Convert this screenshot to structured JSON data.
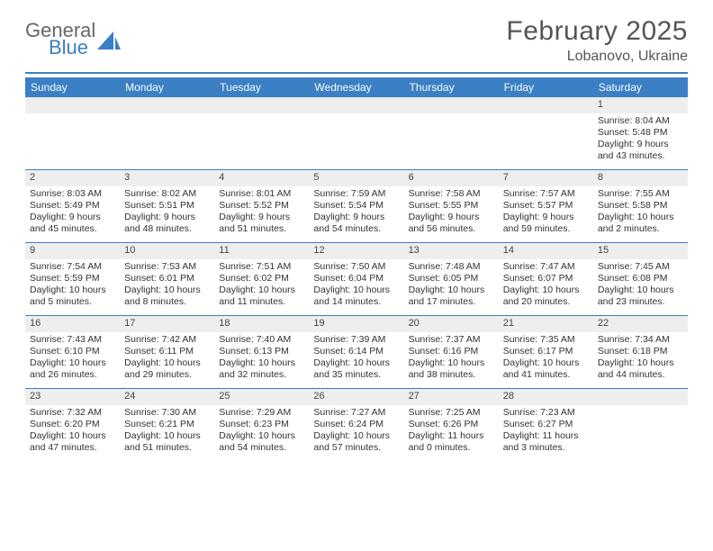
{
  "logo": {
    "text_top": "General",
    "text_bottom": "Blue"
  },
  "title": "February 2025",
  "location": "Lobanovo, Ukraine",
  "colors": {
    "accent": "#3b7fc4",
    "header_text": "#555555",
    "body_text": "#333333",
    "stripe": "#eeeeee",
    "background": "#ffffff"
  },
  "typography": {
    "title_fontsize": 30,
    "location_fontsize": 16,
    "day_header_fontsize": 12,
    "cell_fontsize": 10.5
  },
  "day_headers": [
    "Sunday",
    "Monday",
    "Tuesday",
    "Wednesday",
    "Thursday",
    "Friday",
    "Saturday"
  ],
  "weeks": [
    [
      {
        "day": ""
      },
      {
        "day": ""
      },
      {
        "day": ""
      },
      {
        "day": ""
      },
      {
        "day": ""
      },
      {
        "day": ""
      },
      {
        "day": "1",
        "sunrise": "Sunrise: 8:04 AM",
        "sunset": "Sunset: 5:48 PM",
        "daylight": "Daylight: 9 hours and 43 minutes."
      }
    ],
    [
      {
        "day": "2",
        "sunrise": "Sunrise: 8:03 AM",
        "sunset": "Sunset: 5:49 PM",
        "daylight": "Daylight: 9 hours and 45 minutes."
      },
      {
        "day": "3",
        "sunrise": "Sunrise: 8:02 AM",
        "sunset": "Sunset: 5:51 PM",
        "daylight": "Daylight: 9 hours and 48 minutes."
      },
      {
        "day": "4",
        "sunrise": "Sunrise: 8:01 AM",
        "sunset": "Sunset: 5:52 PM",
        "daylight": "Daylight: 9 hours and 51 minutes."
      },
      {
        "day": "5",
        "sunrise": "Sunrise: 7:59 AM",
        "sunset": "Sunset: 5:54 PM",
        "daylight": "Daylight: 9 hours and 54 minutes."
      },
      {
        "day": "6",
        "sunrise": "Sunrise: 7:58 AM",
        "sunset": "Sunset: 5:55 PM",
        "daylight": "Daylight: 9 hours and 56 minutes."
      },
      {
        "day": "7",
        "sunrise": "Sunrise: 7:57 AM",
        "sunset": "Sunset: 5:57 PM",
        "daylight": "Daylight: 9 hours and 59 minutes."
      },
      {
        "day": "8",
        "sunrise": "Sunrise: 7:55 AM",
        "sunset": "Sunset: 5:58 PM",
        "daylight": "Daylight: 10 hours and 2 minutes."
      }
    ],
    [
      {
        "day": "9",
        "sunrise": "Sunrise: 7:54 AM",
        "sunset": "Sunset: 5:59 PM",
        "daylight": "Daylight: 10 hours and 5 minutes."
      },
      {
        "day": "10",
        "sunrise": "Sunrise: 7:53 AM",
        "sunset": "Sunset: 6:01 PM",
        "daylight": "Daylight: 10 hours and 8 minutes."
      },
      {
        "day": "11",
        "sunrise": "Sunrise: 7:51 AM",
        "sunset": "Sunset: 6:02 PM",
        "daylight": "Daylight: 10 hours and 11 minutes."
      },
      {
        "day": "12",
        "sunrise": "Sunrise: 7:50 AM",
        "sunset": "Sunset: 6:04 PM",
        "daylight": "Daylight: 10 hours and 14 minutes."
      },
      {
        "day": "13",
        "sunrise": "Sunrise: 7:48 AM",
        "sunset": "Sunset: 6:05 PM",
        "daylight": "Daylight: 10 hours and 17 minutes."
      },
      {
        "day": "14",
        "sunrise": "Sunrise: 7:47 AM",
        "sunset": "Sunset: 6:07 PM",
        "daylight": "Daylight: 10 hours and 20 minutes."
      },
      {
        "day": "15",
        "sunrise": "Sunrise: 7:45 AM",
        "sunset": "Sunset: 6:08 PM",
        "daylight": "Daylight: 10 hours and 23 minutes."
      }
    ],
    [
      {
        "day": "16",
        "sunrise": "Sunrise: 7:43 AM",
        "sunset": "Sunset: 6:10 PM",
        "daylight": "Daylight: 10 hours and 26 minutes."
      },
      {
        "day": "17",
        "sunrise": "Sunrise: 7:42 AM",
        "sunset": "Sunset: 6:11 PM",
        "daylight": "Daylight: 10 hours and 29 minutes."
      },
      {
        "day": "18",
        "sunrise": "Sunrise: 7:40 AM",
        "sunset": "Sunset: 6:13 PM",
        "daylight": "Daylight: 10 hours and 32 minutes."
      },
      {
        "day": "19",
        "sunrise": "Sunrise: 7:39 AM",
        "sunset": "Sunset: 6:14 PM",
        "daylight": "Daylight: 10 hours and 35 minutes."
      },
      {
        "day": "20",
        "sunrise": "Sunrise: 7:37 AM",
        "sunset": "Sunset: 6:16 PM",
        "daylight": "Daylight: 10 hours and 38 minutes."
      },
      {
        "day": "21",
        "sunrise": "Sunrise: 7:35 AM",
        "sunset": "Sunset: 6:17 PM",
        "daylight": "Daylight: 10 hours and 41 minutes."
      },
      {
        "day": "22",
        "sunrise": "Sunrise: 7:34 AM",
        "sunset": "Sunset: 6:18 PM",
        "daylight": "Daylight: 10 hours and 44 minutes."
      }
    ],
    [
      {
        "day": "23",
        "sunrise": "Sunrise: 7:32 AM",
        "sunset": "Sunset: 6:20 PM",
        "daylight": "Daylight: 10 hours and 47 minutes."
      },
      {
        "day": "24",
        "sunrise": "Sunrise: 7:30 AM",
        "sunset": "Sunset: 6:21 PM",
        "daylight": "Daylight: 10 hours and 51 minutes."
      },
      {
        "day": "25",
        "sunrise": "Sunrise: 7:29 AM",
        "sunset": "Sunset: 6:23 PM",
        "daylight": "Daylight: 10 hours and 54 minutes."
      },
      {
        "day": "26",
        "sunrise": "Sunrise: 7:27 AM",
        "sunset": "Sunset: 6:24 PM",
        "daylight": "Daylight: 10 hours and 57 minutes."
      },
      {
        "day": "27",
        "sunrise": "Sunrise: 7:25 AM",
        "sunset": "Sunset: 6:26 PM",
        "daylight": "Daylight: 11 hours and 0 minutes."
      },
      {
        "day": "28",
        "sunrise": "Sunrise: 7:23 AM",
        "sunset": "Sunset: 6:27 PM",
        "daylight": "Daylight: 11 hours and 3 minutes."
      },
      {
        "day": ""
      }
    ]
  ]
}
